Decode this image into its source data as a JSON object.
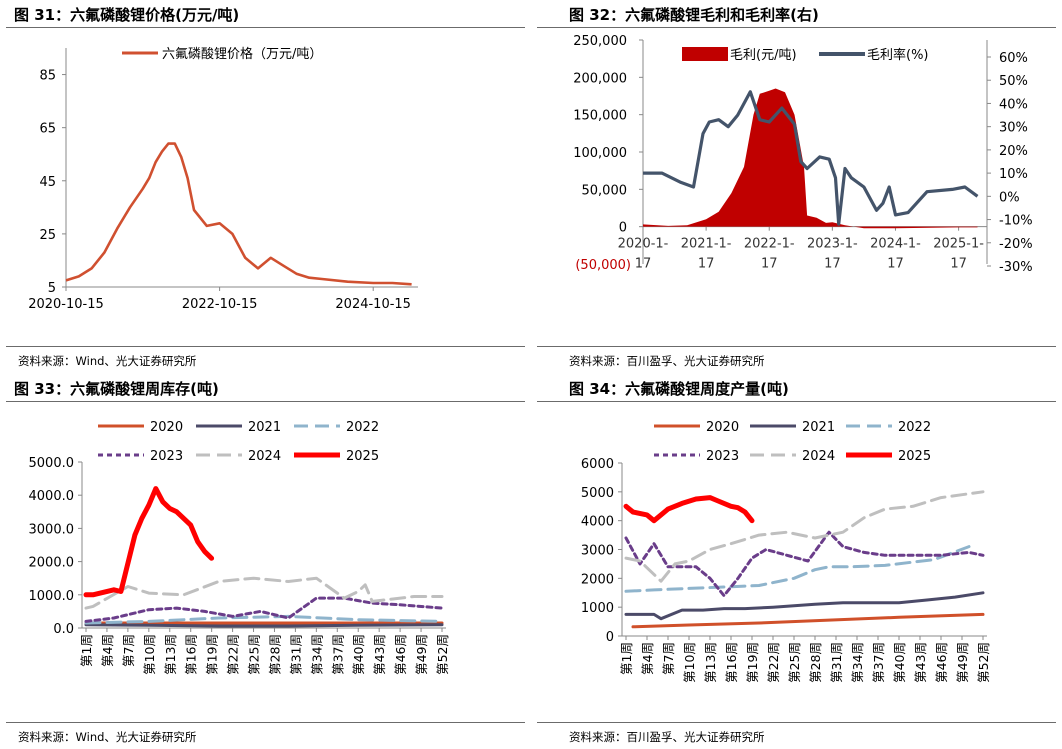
{
  "panels": [
    {
      "title": "图 31：六氟磷酸锂价格(万元/吨)",
      "source": "资料来源：Wind、光大证券研究所"
    },
    {
      "title": "图 32：六氟磷酸锂毛利和毛利率(右)",
      "source": "资料来源：百川盈孚、光大证券研究所"
    },
    {
      "title": "图 33：六氟磷酸锂周库存(吨)",
      "source": "资料来源：Wind、光大证券研究所"
    },
    {
      "title": "图 34：六氟磷酸锂周度产量(吨)",
      "source": "资料来源：百川盈孚、光大证券研究所"
    }
  ],
  "chart_data": [
    {
      "type": "line",
      "title": "图 31：六氟磷酸锂价格(万元/吨)",
      "ylim": [
        5,
        95
      ],
      "yticks": [
        "5",
        "25",
        "45",
        "65",
        "85"
      ],
      "xtick_labels": [
        "2020-10-15",
        "2022-10-15",
        "2024-10-15"
      ],
      "legend_position": "top",
      "series": [
        {
          "name": "六氟磷酸锂价格（万元/吨）",
          "color": "#d05030",
          "x": [
            "2020-10",
            "2020-12",
            "2021-02",
            "2021-04",
            "2021-06",
            "2021-08",
            "2021-10",
            "2021-11",
            "2021-12",
            "2022-01",
            "2022-02",
            "2022-03",
            "2022-04",
            "2022-05",
            "2022-06",
            "2022-08",
            "2022-10",
            "2022-12",
            "2023-02",
            "2023-04",
            "2023-06",
            "2023-08",
            "2023-10",
            "2023-12",
            "2024-02",
            "2024-06",
            "2024-10",
            "2025-01",
            "2025-04"
          ],
          "values": [
            7.5,
            9,
            12,
            18,
            27,
            35,
            42,
            46,
            52,
            56,
            59,
            59,
            54,
            46,
            34,
            28,
            29,
            25,
            16,
            12,
            16,
            13,
            10,
            8.5,
            8,
            7,
            6.5,
            6.5,
            6
          ]
        }
      ]
    },
    {
      "type": "area",
      "title": "图 32：六氟磷酸锂毛利和毛利率(右)",
      "ylim": [
        -50000,
        250000
      ],
      "yticks": [
        "0",
        "50,000",
        "100,000",
        "150,000",
        "200,000",
        "250,000"
      ],
      "ytick_negative": "(50,000)",
      "y2lim": [
        -30,
        60
      ],
      "y2ticks": [
        "-30%",
        "-20%",
        "-10%",
        "0%",
        "10%",
        "20%",
        "30%",
        "40%",
        "50%",
        "60%"
      ],
      "xtick_labels": [
        "2020-1-17",
        "2021-1-17",
        "2022-1-17",
        "2023-1-17",
        "2024-1-17",
        "2025-1-17"
      ],
      "legend_position": "top",
      "series": [
        {
          "name": "毛利(元/吨)",
          "color": "#c00000",
          "x": [
            2020.0,
            2020.4,
            2020.7,
            2021.0,
            2021.2,
            2021.4,
            2021.6,
            2021.75,
            2021.85,
            2022.0,
            2022.1,
            2022.25,
            2022.4,
            2022.55,
            2022.6,
            2022.75,
            2022.9,
            2023.0,
            2023.2,
            2023.5,
            2024.0,
            2025.0,
            2025.3
          ],
          "values": [
            3000,
            1000,
            2000,
            10000,
            20000,
            45000,
            80000,
            150000,
            178000,
            182000,
            185000,
            180000,
            150000,
            80000,
            15000,
            12000,
            5000,
            6000,
            2000,
            -2000,
            -2000,
            -1000,
            -1000
          ]
        },
        {
          "name": "毛利率(%)",
          "color": "#44546a",
          "axis": "right",
          "x": [
            2020.0,
            2020.3,
            2020.6,
            2020.8,
            2020.95,
            2021.05,
            2021.2,
            2021.35,
            2021.5,
            2021.7,
            2021.85,
            2022.0,
            2022.2,
            2022.4,
            2022.5,
            2022.6,
            2022.8,
            2022.95,
            2023.05,
            2023.1,
            2023.2,
            2023.3,
            2023.5,
            2023.7,
            2023.8,
            2023.9,
            2024.0,
            2024.2,
            2024.5,
            2024.9,
            2025.1,
            2025.3
          ],
          "values": [
            10,
            10,
            6,
            4,
            27,
            32,
            33,
            30,
            35,
            45,
            33,
            32,
            38,
            31,
            15,
            12,
            17,
            16,
            8,
            -12,
            12,
            8,
            4,
            -6,
            -3,
            4,
            -8,
            -7,
            2,
            3,
            4,
            0
          ]
        }
      ]
    },
    {
      "type": "line",
      "title": "图 33：六氟磷酸锂周库存(吨)",
      "ylim": [
        0,
        5000
      ],
      "yticks": [
        "0.0",
        "1000.0",
        "2000.0",
        "3000.0",
        "4000.0",
        "5000.0"
      ],
      "categories": [
        "第1周",
        "第4周",
        "第7周",
        "第10周",
        "第13周",
        "第16周",
        "第19周",
        "第22周",
        "第25周",
        "第28周",
        "第31周",
        "第34周",
        "第37周",
        "第40周",
        "第43周",
        "第46周",
        "第49周",
        "第52周"
      ],
      "legend_position": "top",
      "series": [
        {
          "name": "2020",
          "color": "#d0502a",
          "x": [
            1,
            52
          ],
          "values": [
            150,
            150
          ]
        },
        {
          "name": "2021",
          "color": "#4b4a68",
          "x": [
            1,
            10,
            20,
            30,
            40,
            52
          ],
          "values": [
            100,
            80,
            60,
            60,
            80,
            100
          ]
        },
        {
          "name": "2022",
          "color": "#8fb4cc",
          "x": [
            1,
            10,
            20,
            30,
            40,
            52
          ],
          "values": [
            150,
            200,
            300,
            350,
            250,
            200
          ]
        },
        {
          "name": "2023",
          "color": "#6a3d8a",
          "x": [
            1,
            5,
            10,
            14,
            18,
            22,
            26,
            30,
            34,
            38,
            42,
            46,
            52
          ],
          "values": [
            200,
            300,
            550,
            600,
            500,
            350,
            500,
            300,
            900,
            900,
            750,
            700,
            600
          ]
        },
        {
          "name": "2024",
          "color": "#bfbfbf",
          "x": [
            1,
            2,
            7,
            10,
            15,
            20,
            25,
            30,
            34,
            38,
            40,
            41,
            42,
            48,
            52
          ],
          "values": [
            600,
            650,
            1250,
            1050,
            1000,
            1400,
            1500,
            1400,
            1500,
            900,
            1100,
            1300,
            800,
            950,
            950
          ]
        },
        {
          "name": "2025",
          "color": "#ff0000",
          "x": [
            1,
            2,
            5,
            6,
            8,
            9,
            10,
            11,
            12,
            13,
            14,
            15,
            16,
            17,
            18,
            19
          ],
          "values": [
            1000,
            1000,
            1150,
            1100,
            2800,
            3300,
            3700,
            4200,
            3800,
            3600,
            3500,
            3300,
            3100,
            2600,
            2300,
            2100
          ]
        }
      ]
    },
    {
      "type": "line",
      "title": "图 34：六氟磷酸锂周度产量(吨)",
      "ylim": [
        0,
        6000
      ],
      "yticks": [
        "0",
        "1000",
        "2000",
        "3000",
        "4000",
        "5000",
        "6000"
      ],
      "categories": [
        "第1周",
        "第4周",
        "第7周",
        "第10周",
        "第13周",
        "第16周",
        "第19周",
        "第22周",
        "第25周",
        "第28周",
        "第31周",
        "第34周",
        "第37周",
        "第40周",
        "第43周",
        "第46周",
        "第49周",
        "第52周"
      ],
      "legend_position": "top",
      "series": [
        {
          "name": "2020",
          "color": "#d0502a",
          "x": [
            2,
            10,
            20,
            30,
            40,
            52
          ],
          "values": [
            320,
            380,
            450,
            550,
            650,
            750
          ]
        },
        {
          "name": "2021",
          "color": "#4b4a68",
          "x": [
            1,
            5,
            6,
            9,
            12,
            15,
            18,
            22,
            25,
            28,
            32,
            36,
            40,
            44,
            48,
            52
          ],
          "values": [
            750,
            750,
            600,
            900,
            900,
            950,
            950,
            1000,
            1050,
            1100,
            1150,
            1150,
            1150,
            1250,
            1350,
            1500
          ]
        },
        {
          "name": "2022",
          "color": "#8fb4cc",
          "x": [
            1,
            5,
            10,
            15,
            20,
            25,
            28,
            30,
            33,
            38,
            45,
            50
          ],
          "values": [
            1550,
            1600,
            1650,
            1700,
            1750,
            2000,
            2300,
            2400,
            2400,
            2450,
            2650,
            3100
          ]
        },
        {
          "name": "2023",
          "color": "#6a3d8a",
          "x": [
            1,
            3,
            5,
            7,
            9,
            11,
            13,
            15,
            17,
            19,
            21,
            24,
            27,
            30,
            32,
            35,
            38,
            42,
            46,
            50,
            52
          ],
          "values": [
            3400,
            2500,
            3200,
            2400,
            2400,
            2400,
            2000,
            1400,
            2000,
            2700,
            3000,
            2800,
            2600,
            3600,
            3100,
            2900,
            2800,
            2800,
            2800,
            2900,
            2800
          ]
        },
        {
          "name": "2024",
          "color": "#bfbfbf",
          "x": [
            1,
            3,
            6,
            8,
            10,
            13,
            16,
            20,
            24,
            28,
            32,
            35,
            38,
            42,
            46,
            49,
            52
          ],
          "values": [
            2700,
            2600,
            1900,
            2500,
            2600,
            3000,
            3200,
            3500,
            3600,
            3400,
            3600,
            4100,
            4400,
            4500,
            4800,
            4900,
            5000
          ]
        },
        {
          "name": "2025",
          "color": "#ff0000",
          "x": [
            1,
            2,
            4,
            5,
            7,
            9,
            11,
            13,
            14,
            16,
            17,
            18,
            19
          ],
          "values": [
            4500,
            4300,
            4200,
            4000,
            4400,
            4600,
            4750,
            4800,
            4700,
            4500,
            4450,
            4300,
            4000
          ]
        }
      ]
    }
  ]
}
